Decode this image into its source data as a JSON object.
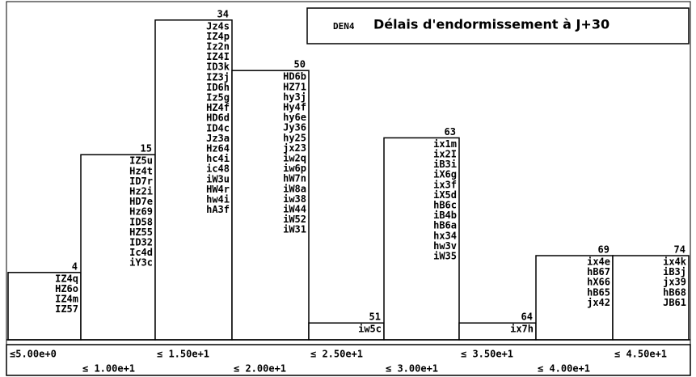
{
  "chart_data": {
    "type": "bar",
    "subtitle": "DEN4",
    "title": "Délais d'endormissement à J+30",
    "categories": [
      "≤5.00e+0",
      "≤ 1.00e+1",
      "≤ 1.50e+1",
      "≤ 2.00e+1",
      "≤ 2.50e+1",
      "≤ 3.00e+1",
      "≤ 3.50e+1",
      "≤ 4.00e+1",
      "≤ 4.50e+1"
    ],
    "values": [
      4,
      11,
      19,
      16,
      1,
      12,
      1,
      5,
      5
    ],
    "cumulative": [
      4,
      15,
      34,
      50,
      51,
      63,
      64,
      69,
      74
    ],
    "items": [
      [
        "IZ4q",
        "HZ6o",
        "IZ4m",
        "IZ57"
      ],
      [
        "IZ5u",
        "Hz4t",
        "ID7r",
        "Hz2i",
        "HD7e",
        "Hz69",
        "ID58",
        "HZ55",
        "ID32",
        "Ic4d",
        "iY3c"
      ],
      [
        "Jz4s",
        "IZ4p",
        "Iz2n",
        "IZ4I",
        "ID3k",
        "IZ3j",
        "ID6h",
        "Iz5g",
        "HZ4f",
        "HD6d",
        "ID4c",
        "Jz3a",
        "Hz64",
        "hc4i",
        "ic48",
        "iW3u",
        "HW4r",
        "hw4i",
        "hA3f"
      ],
      [
        "HD6b",
        "HZ71",
        "hy3j",
        "Hy4f",
        "hy6e",
        "Jy36",
        "hy25",
        "jx23",
        "iw2q",
        "iw6p",
        "hW7n",
        "iW8a",
        "iw38",
        "iW44",
        "iW52",
        "iW31"
      ],
      [
        "iw5c"
      ],
      [
        "ix1m",
        "ix2I",
        "iB3i",
        "iX6g",
        "ix3f",
        "iX5d",
        "hB6c",
        "iB4b",
        "hB6a",
        "hx34",
        "hw3v",
        "iW35"
      ],
      [
        "ix7h"
      ],
      [
        "ix4e",
        "hB67",
        "hX66",
        "hB65",
        "jx42"
      ],
      [
        "ix4k",
        "iB3j",
        "jx39",
        "hB68",
        "JB61"
      ]
    ],
    "color": "#ffffff"
  }
}
